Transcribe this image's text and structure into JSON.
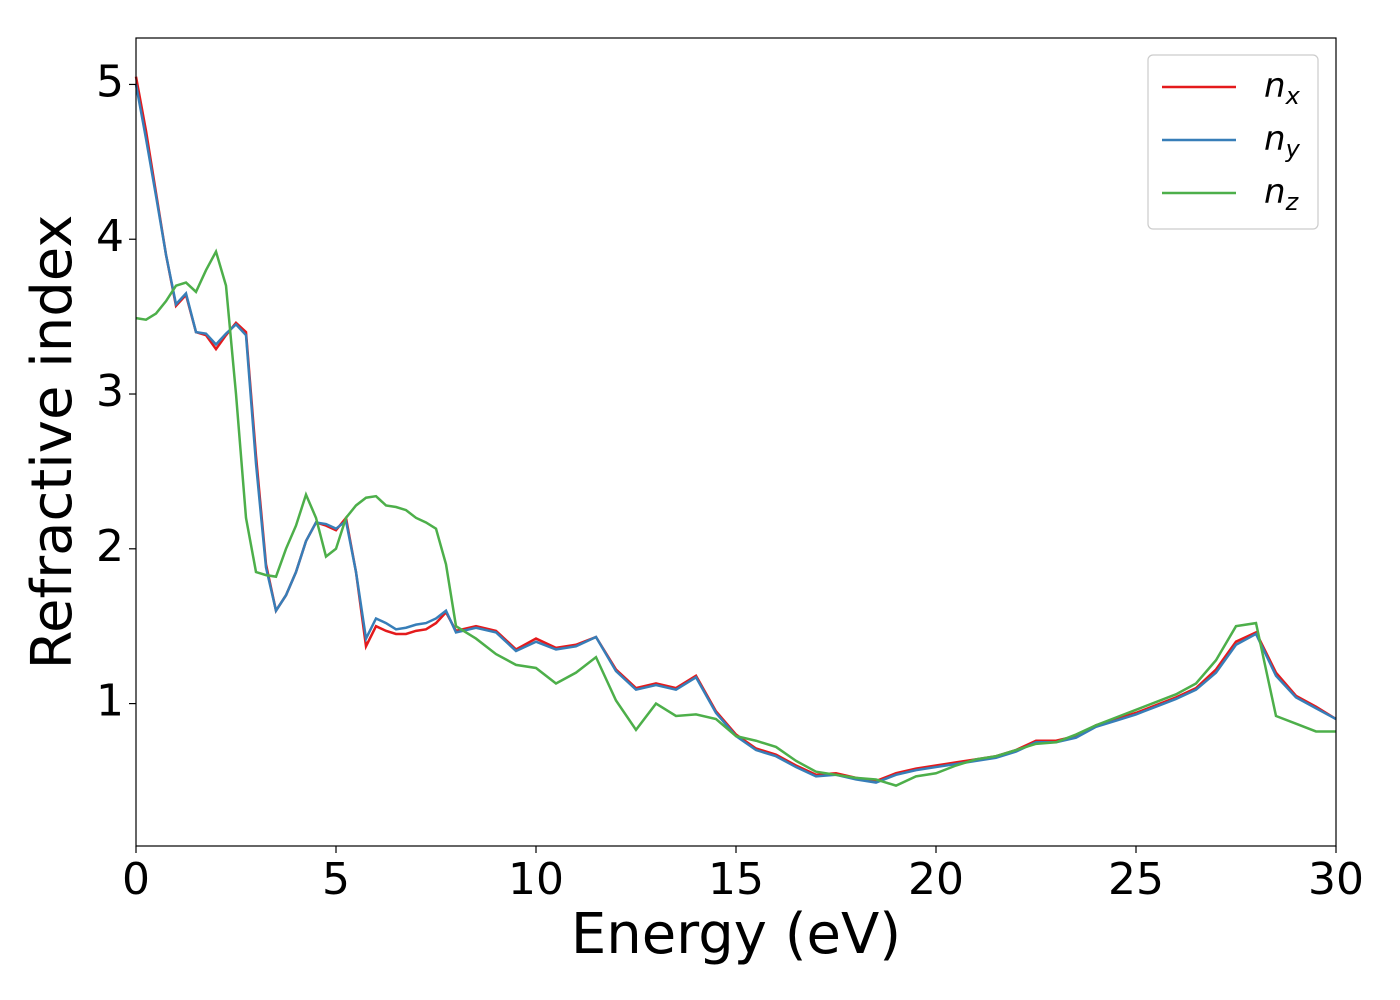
{
  "chart_data": {
    "type": "line",
    "xlabel": "Energy (eV)",
    "ylabel": "Refractive index",
    "xlim": [
      0,
      30
    ],
    "xticks": [
      0,
      5,
      10,
      15,
      20,
      25,
      30
    ],
    "ylim": [
      0.08,
      5.3
    ],
    "yticks": [
      1,
      2,
      3,
      4,
      5
    ],
    "legend": "upper right",
    "grid": false,
    "x": [
      0,
      0.25,
      0.5,
      0.75,
      1,
      1.25,
      1.5,
      1.75,
      2,
      2.25,
      2.5,
      2.75,
      3,
      3.25,
      3.5,
      3.75,
      4,
      4.25,
      4.5,
      4.75,
      5,
      5.25,
      5.5,
      5.75,
      6,
      6.25,
      6.5,
      6.75,
      7,
      7.25,
      7.5,
      7.75,
      8,
      8.5,
      9,
      9.5,
      10,
      10.5,
      11,
      11.5,
      12,
      12.5,
      13,
      13.5,
      14,
      14.5,
      15,
      15.5,
      16,
      16.5,
      17,
      17.5,
      18,
      18.5,
      19,
      19.5,
      20,
      20.5,
      21,
      21.5,
      22,
      22.5,
      23,
      23.5,
      24,
      24.5,
      25,
      25.5,
      26,
      26.5,
      27,
      27.5,
      28,
      28.5,
      29,
      29.5,
      30
    ],
    "series": [
      {
        "name": "nx",
        "color": "#e41a1c",
        "values": [
          5.05,
          4.7,
          4.3,
          3.9,
          3.57,
          3.64,
          3.4,
          3.38,
          3.29,
          3.38,
          3.46,
          3.4,
          2.6,
          1.9,
          1.6,
          1.7,
          1.85,
          2.05,
          2.17,
          2.15,
          2.12,
          2.2,
          1.85,
          1.37,
          1.5,
          1.47,
          1.45,
          1.45,
          1.47,
          1.48,
          1.52,
          1.59,
          1.47,
          1.5,
          1.47,
          1.35,
          1.42,
          1.36,
          1.38,
          1.43,
          1.22,
          1.1,
          1.13,
          1.1,
          1.18,
          0.95,
          0.8,
          0.71,
          0.67,
          0.6,
          0.54,
          0.55,
          0.52,
          0.5,
          0.55,
          0.58,
          0.6,
          0.62,
          0.64,
          0.66,
          0.7,
          0.76,
          0.76,
          0.79,
          0.86,
          0.9,
          0.94,
          0.99,
          1.04,
          1.1,
          1.22,
          1.4,
          1.46,
          1.2,
          1.05,
          0.98,
          0.9
        ]
      },
      {
        "name": "ny",
        "color": "#377eb8",
        "values": [
          5.0,
          4.65,
          4.28,
          3.9,
          3.58,
          3.65,
          3.4,
          3.39,
          3.32,
          3.39,
          3.45,
          3.38,
          2.55,
          1.88,
          1.6,
          1.7,
          1.85,
          2.05,
          2.17,
          2.16,
          2.13,
          2.18,
          1.85,
          1.42,
          1.55,
          1.52,
          1.48,
          1.49,
          1.51,
          1.52,
          1.55,
          1.6,
          1.46,
          1.49,
          1.46,
          1.34,
          1.4,
          1.35,
          1.37,
          1.43,
          1.21,
          1.09,
          1.12,
          1.09,
          1.17,
          0.94,
          0.79,
          0.7,
          0.66,
          0.59,
          0.53,
          0.54,
          0.51,
          0.49,
          0.54,
          0.57,
          0.59,
          0.61,
          0.63,
          0.65,
          0.69,
          0.75,
          0.75,
          0.78,
          0.85,
          0.89,
          0.93,
          0.98,
          1.03,
          1.09,
          1.2,
          1.38,
          1.45,
          1.18,
          1.04,
          0.97,
          0.9
        ]
      },
      {
        "name": "nz",
        "color": "#4daf4a",
        "values": [
          3.49,
          3.48,
          3.52,
          3.6,
          3.7,
          3.72,
          3.66,
          3.8,
          3.92,
          3.7,
          3.0,
          2.2,
          1.85,
          1.83,
          1.82,
          2.0,
          2.15,
          2.35,
          2.2,
          1.95,
          2.0,
          2.2,
          2.28,
          2.33,
          2.34,
          2.28,
          2.27,
          2.25,
          2.2,
          2.17,
          2.13,
          1.9,
          1.5,
          1.42,
          1.32,
          1.25,
          1.23,
          1.13,
          1.2,
          1.3,
          1.02,
          0.83,
          1.0,
          0.92,
          0.93,
          0.9,
          0.79,
          0.76,
          0.72,
          0.63,
          0.56,
          0.54,
          0.52,
          0.51,
          0.47,
          0.53,
          0.55,
          0.6,
          0.64,
          0.66,
          0.7,
          0.74,
          0.75,
          0.8,
          0.86,
          0.91,
          0.96,
          1.01,
          1.06,
          1.13,
          1.28,
          1.5,
          1.52,
          0.92,
          0.87,
          0.82,
          0.82
        ]
      }
    ]
  }
}
